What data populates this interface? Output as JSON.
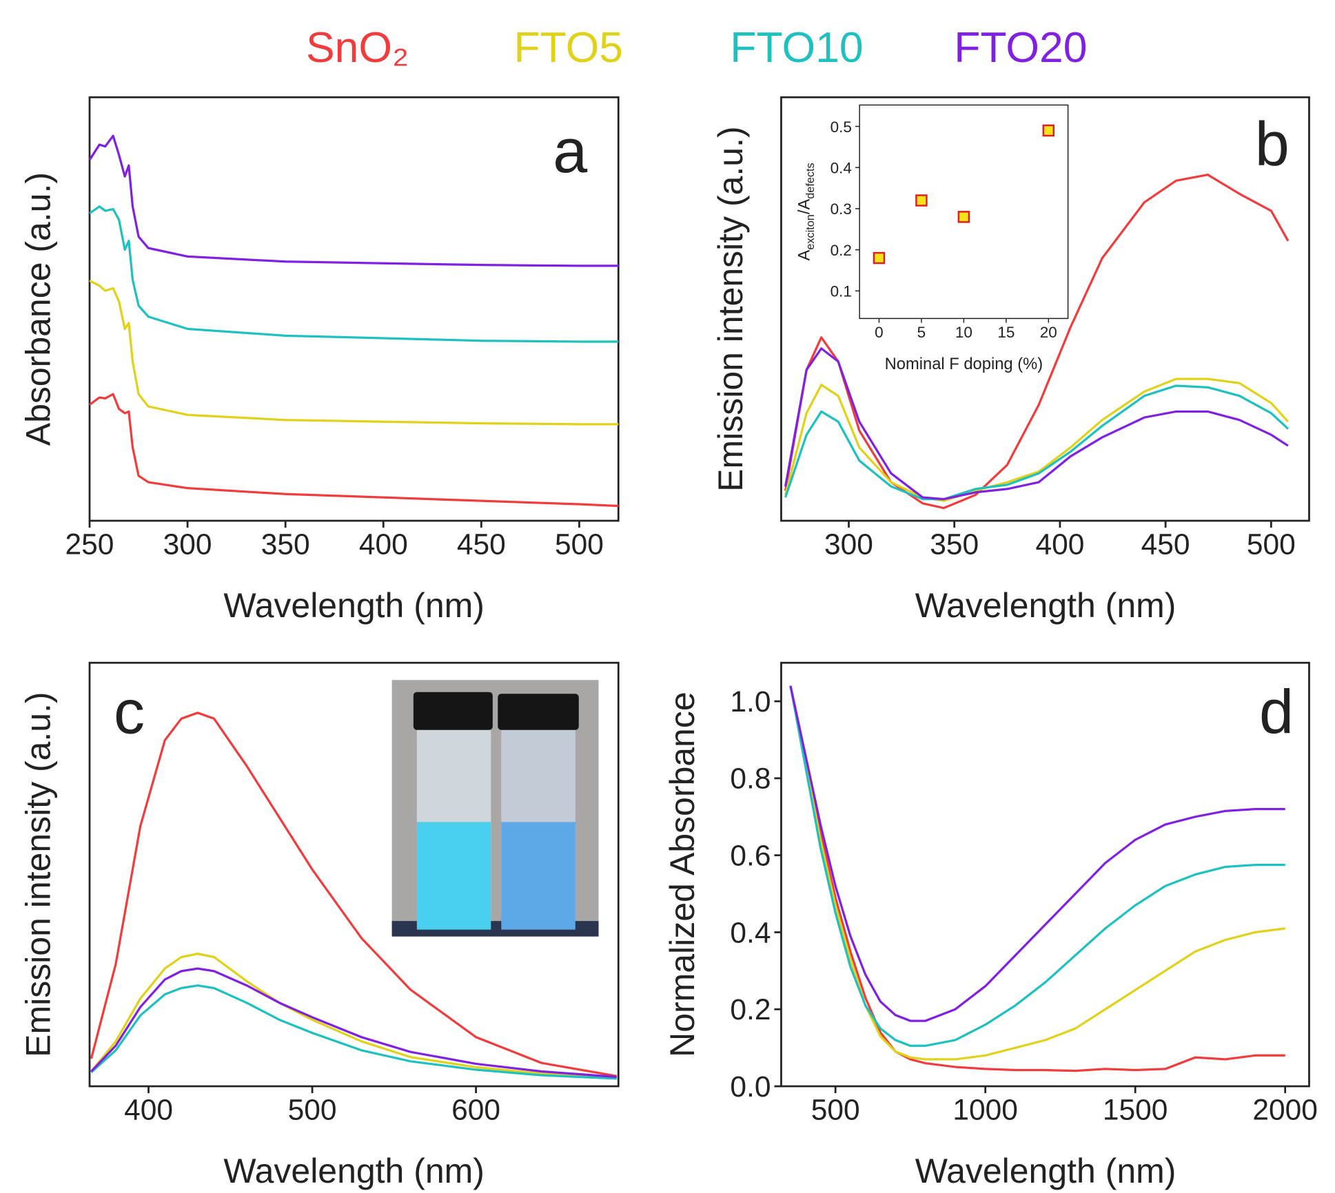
{
  "chart_data": [
    {
      "type": "line",
      "panel_label": "a",
      "xlabel": "Wavelength (nm)",
      "ylabel": "Absorbance (a.u.)",
      "xlim": [
        250,
        520
      ],
      "xticks": [
        250,
        300,
        350,
        400,
        450,
        500
      ],
      "ylim": [
        0,
        1
      ],
      "x": [
        250,
        255,
        258,
        262,
        265,
        268,
        270,
        272,
        275,
        280,
        300,
        350,
        400,
        450,
        500,
        520
      ],
      "series": [
        {
          "name": "SnO₂",
          "color": "#f03c3c",
          "values": [
            0.274,
            0.291,
            0.289,
            0.299,
            0.264,
            0.254,
            0.258,
            0.173,
            0.106,
            0.091,
            0.077,
            0.063,
            0.055,
            0.047,
            0.039,
            0.035
          ]
        },
        {
          "name": "FTO5",
          "color": "#e0d21a",
          "values": [
            0.567,
            0.555,
            0.543,
            0.549,
            0.518,
            0.453,
            0.467,
            0.376,
            0.299,
            0.27,
            0.25,
            0.238,
            0.234,
            0.23,
            0.228,
            0.228
          ]
        },
        {
          "name": "FTO10",
          "color": "#1fc0c0",
          "values": [
            0.726,
            0.742,
            0.732,
            0.736,
            0.711,
            0.64,
            0.661,
            0.569,
            0.508,
            0.482,
            0.453,
            0.437,
            0.431,
            0.425,
            0.423,
            0.423
          ]
        },
        {
          "name": "FTO20",
          "color": "#8020e0",
          "values": [
            0.852,
            0.888,
            0.884,
            0.909,
            0.864,
            0.813,
            0.839,
            0.742,
            0.671,
            0.644,
            0.624,
            0.612,
            0.608,
            0.604,
            0.602,
            0.602
          ]
        }
      ]
    },
    {
      "type": "line",
      "panel_label": "b",
      "xlabel": "Wavelength (nm)",
      "ylabel": "Emission intensity (a.u.)",
      "xlim": [
        268,
        518
      ],
      "xticks": [
        300,
        350,
        400,
        450,
        500
      ],
      "ylim": [
        0,
        1
      ],
      "x": [
        270,
        280,
        287,
        295,
        305,
        320,
        335,
        345,
        360,
        375,
        390,
        405,
        420,
        440,
        455,
        470,
        485,
        500,
        508
      ],
      "series": [
        {
          "color": "#f03c3c",
          "values": [
            0.071,
            0.356,
            0.433,
            0.376,
            0.213,
            0.091,
            0.041,
            0.03,
            0.061,
            0.132,
            0.274,
            0.457,
            0.62,
            0.752,
            0.803,
            0.817,
            0.772,
            0.732,
            0.661
          ]
        },
        {
          "color": "#e0d21a",
          "values": [
            0.061,
            0.254,
            0.321,
            0.295,
            0.173,
            0.091,
            0.055,
            0.047,
            0.071,
            0.091,
            0.116,
            0.173,
            0.238,
            0.305,
            0.335,
            0.335,
            0.325,
            0.278,
            0.234
          ]
        },
        {
          "color": "#1fc0c0",
          "values": [
            0.055,
            0.203,
            0.258,
            0.234,
            0.142,
            0.081,
            0.051,
            0.051,
            0.075,
            0.085,
            0.112,
            0.163,
            0.224,
            0.295,
            0.319,
            0.315,
            0.295,
            0.254,
            0.217
          ]
        },
        {
          "color": "#8020e0",
          "values": [
            0.081,
            0.356,
            0.407,
            0.376,
            0.234,
            0.112,
            0.055,
            0.051,
            0.067,
            0.075,
            0.091,
            0.152,
            0.197,
            0.244,
            0.258,
            0.258,
            0.238,
            0.203,
            0.177
          ]
        }
      ]
    },
    {
      "type": "scatter",
      "xlabel": "Nominal F doping (%)",
      "ylabel": [
        "A",
        "exciton",
        "/A",
        "defects"
      ],
      "xlim": [
        -2.3,
        22.3
      ],
      "xticks": [
        0,
        5,
        10,
        15,
        20
      ],
      "ylim": [
        0.033,
        0.552
      ],
      "yticks": [
        0.1,
        0.2,
        0.3,
        0.4,
        0.5
      ],
      "x": [
        0,
        5,
        10,
        20
      ],
      "values": [
        0.18,
        0.32,
        0.28,
        0.49
      ],
      "color": "#f5e31a",
      "edge_color": "#e02020"
    },
    {
      "type": "line",
      "panel_label": "c",
      "xlabel": "Wavelength (nm)",
      "ylabel": "Emission intensity (a.u.)",
      "xlim": [
        364,
        687
      ],
      "xticks": [
        400,
        500,
        600
      ],
      "ylim": [
        0,
        1
      ],
      "x": [
        365,
        380,
        395,
        410,
        420,
        430,
        440,
        460,
        480,
        500,
        530,
        560,
        600,
        640,
        686
      ],
      "series": [
        {
          "color": "#f03c3c",
          "values": [
            0.065,
            0.289,
            0.614,
            0.817,
            0.868,
            0.882,
            0.868,
            0.756,
            0.634,
            0.512,
            0.35,
            0.228,
            0.116,
            0.055,
            0.024
          ]
        },
        {
          "color": "#e0d21a",
          "values": [
            0.035,
            0.106,
            0.207,
            0.278,
            0.305,
            0.313,
            0.305,
            0.248,
            0.197,
            0.157,
            0.106,
            0.069,
            0.045,
            0.03,
            0.02
          ]
        },
        {
          "color": "#1fc0c0",
          "values": [
            0.033,
            0.085,
            0.167,
            0.217,
            0.232,
            0.238,
            0.232,
            0.197,
            0.157,
            0.126,
            0.085,
            0.059,
            0.039,
            0.026,
            0.018
          ]
        },
        {
          "color": "#8020e0",
          "values": [
            0.035,
            0.096,
            0.187,
            0.252,
            0.272,
            0.278,
            0.272,
            0.238,
            0.197,
            0.163,
            0.116,
            0.081,
            0.053,
            0.035,
            0.022
          ]
        }
      ]
    },
    {
      "type": "line",
      "panel_label": "d",
      "xlabel": "Wavelength (nm)",
      "ylabel": "Normalized Absorbance",
      "xlim": [
        319,
        2080
      ],
      "xticks": [
        500,
        1000,
        1500,
        2000
      ],
      "ylim": [
        0,
        1.1
      ],
      "yticks": [
        {
          "value": 0,
          "label": "0.0"
        },
        0.2,
        0.4,
        0.6,
        0.8,
        {
          "value": 1,
          "label": "1.0"
        }
      ],
      "x": [
        350,
        400,
        450,
        500,
        550,
        600,
        650,
        700,
        750,
        800,
        900,
        1000,
        1100,
        1200,
        1300,
        1400,
        1500,
        1600,
        1700,
        1800,
        1900,
        2000
      ],
      "series": [
        {
          "color": "#f03c3c",
          "values": [
            1.04,
            0.85,
            0.66,
            0.49,
            0.35,
            0.23,
            0.14,
            0.09,
            0.07,
            0.06,
            0.05,
            0.045,
            0.042,
            0.042,
            0.04,
            0.045,
            0.042,
            0.045,
            0.075,
            0.07,
            0.08,
            0.08
          ]
        },
        {
          "color": "#e0d21a",
          "values": [
            1.04,
            0.84,
            0.64,
            0.47,
            0.33,
            0.21,
            0.13,
            0.09,
            0.075,
            0.07,
            0.07,
            0.08,
            0.1,
            0.12,
            0.15,
            0.2,
            0.25,
            0.3,
            0.35,
            0.38,
            0.4,
            0.41
          ]
        },
        {
          "color": "#1fc0c0",
          "values": [
            1.04,
            0.83,
            0.62,
            0.45,
            0.31,
            0.21,
            0.15,
            0.12,
            0.105,
            0.105,
            0.12,
            0.16,
            0.21,
            0.27,
            0.34,
            0.41,
            0.47,
            0.52,
            0.55,
            0.57,
            0.575,
            0.575
          ]
        },
        {
          "color": "#8020e0",
          "values": [
            1.04,
            0.86,
            0.68,
            0.52,
            0.39,
            0.29,
            0.22,
            0.185,
            0.17,
            0.17,
            0.2,
            0.26,
            0.34,
            0.42,
            0.5,
            0.58,
            0.64,
            0.68,
            0.7,
            0.715,
            0.72,
            0.72
          ]
        }
      ]
    }
  ]
}
